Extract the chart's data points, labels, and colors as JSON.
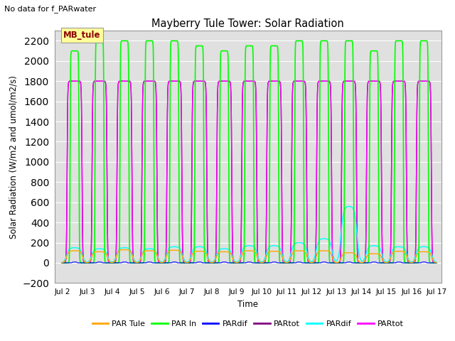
{
  "title": "Mayberry Tule Tower: Solar Radiation",
  "subtitle": "No data for f_PARwater",
  "ylabel": "Solar Radiation (W/m2 and umol/m2/s)",
  "xlabel": "Time",
  "ylim": [
    -200,
    2300
  ],
  "yticks": [
    -200,
    0,
    200,
    400,
    600,
    800,
    1000,
    1200,
    1400,
    1600,
    1800,
    2000,
    2200
  ],
  "x_start": 2,
  "x_end": 17,
  "xtick_labels": [
    "Jul 2",
    "Jul 3",
    "Jul 4",
    "Jul 5",
    "Jul 6",
    "Jul 7",
    "Jul 8",
    "Jul 9",
    "Jul 10",
    "Jul 11",
    "Jul 12",
    "Jul 13",
    "Jul 14",
    "Jul 15",
    "Jul 16",
    "Jul 17"
  ],
  "xtick_positions": [
    2,
    3,
    4,
    5,
    6,
    7,
    8,
    9,
    10,
    11,
    12,
    13,
    14,
    15,
    16,
    17
  ],
  "legend_entries": [
    {
      "label": "PAR Tule",
      "color": "#FFA500"
    },
    {
      "label": "PAR In",
      "color": "#00FF00"
    },
    {
      "label": "PARdif",
      "color": "#0000FF"
    },
    {
      "label": "PARtot",
      "color": "#800080"
    },
    {
      "label": "PARdif",
      "color": "#00FFFF"
    },
    {
      "label": "PARtot",
      "color": "#FF00FF"
    }
  ],
  "bg_color": "#E0E0E0",
  "num_days": 15,
  "day_peak_PAR_In": [
    2100,
    2200,
    2200,
    2200,
    2200,
    2150,
    2100,
    2150,
    2150,
    2200,
    2200,
    2200,
    2100,
    2200,
    2200
  ],
  "day_peak_PARtot": [
    1800,
    1800,
    1800,
    1800,
    1800,
    1800,
    1800,
    1800,
    1800,
    1800,
    1800,
    1800,
    1800,
    1800,
    1800
  ],
  "day_peak_PAR_Tule": [
    120,
    110,
    130,
    120,
    125,
    115,
    110,
    120,
    115,
    120,
    120,
    100,
    90,
    115,
    110
  ],
  "day_peak_PARdif_cyan": [
    150,
    140,
    150,
    140,
    160,
    160,
    140,
    170,
    170,
    200,
    240,
    560,
    170,
    160,
    160
  ],
  "day_half_width": [
    0.28,
    0.28,
    0.28,
    0.28,
    0.28,
    0.28,
    0.28,
    0.28,
    0.28,
    0.28,
    0.28,
    0.28,
    0.28,
    0.28,
    0.28
  ],
  "par_in_half_width": [
    0.18,
    0.18,
    0.18,
    0.18,
    0.18,
    0.18,
    0.18,
    0.18,
    0.18,
    0.18,
    0.18,
    0.18,
    0.18,
    0.18,
    0.18
  ]
}
